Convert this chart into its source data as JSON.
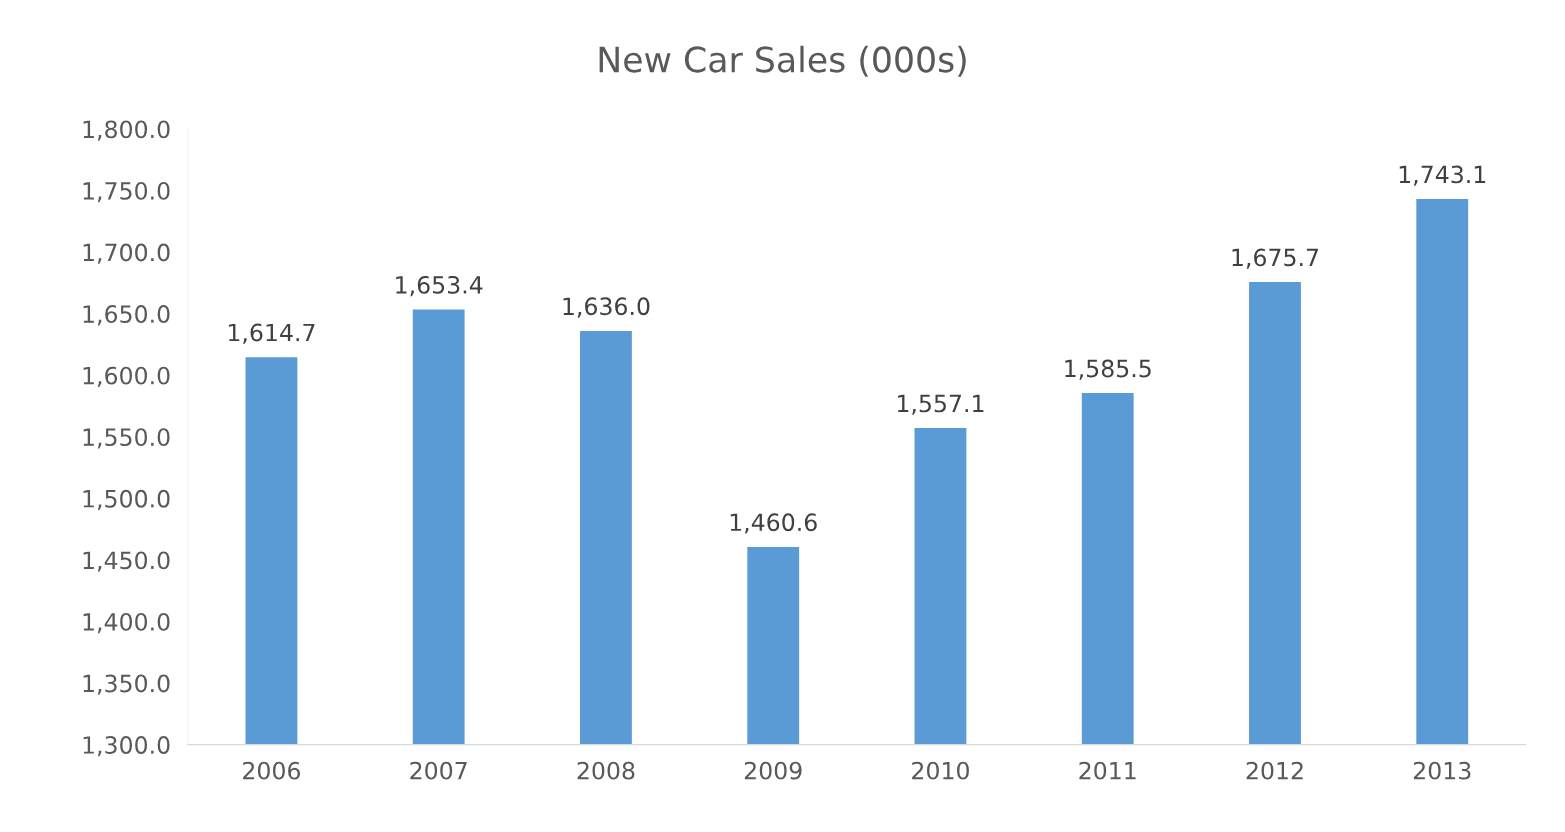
{
  "chart_data": {
    "type": "bar",
    "title": "New Car Sales (000s)",
    "categories": [
      "2006",
      "2007",
      "2008",
      "2009",
      "2010",
      "2011",
      "2012",
      "2013"
    ],
    "values": [
      1614.7,
      1653.4,
      1636.0,
      1460.6,
      1557.1,
      1585.5,
      1675.7,
      1743.1
    ],
    "value_labels": [
      "1,614.7",
      "1,653.4",
      "1,636.0",
      "1,460.6",
      "1,557.1",
      "1,585.5",
      "1,675.7",
      "1,743.1"
    ],
    "color": "#5b9bd5",
    "ylim": [
      1300,
      1800
    ],
    "yticks": [
      {
        "value": 1300,
        "label": "1,300.0"
      },
      {
        "value": 1350,
        "label": "1,350.0"
      },
      {
        "value": 1400,
        "label": "1,400.0"
      },
      {
        "value": 1450,
        "label": "1,450.0"
      },
      {
        "value": 1500,
        "label": "1,500.0"
      },
      {
        "value": 1550,
        "label": "1,550.0"
      },
      {
        "value": 1600,
        "label": "1,600.0"
      },
      {
        "value": 1650,
        "label": "1,650.0"
      },
      {
        "value": 1700,
        "label": "1,700.0"
      },
      {
        "value": 1750,
        "label": "1,750.0"
      },
      {
        "value": 1800,
        "label": "1,800.0"
      }
    ],
    "grid": false,
    "legend": false
  }
}
